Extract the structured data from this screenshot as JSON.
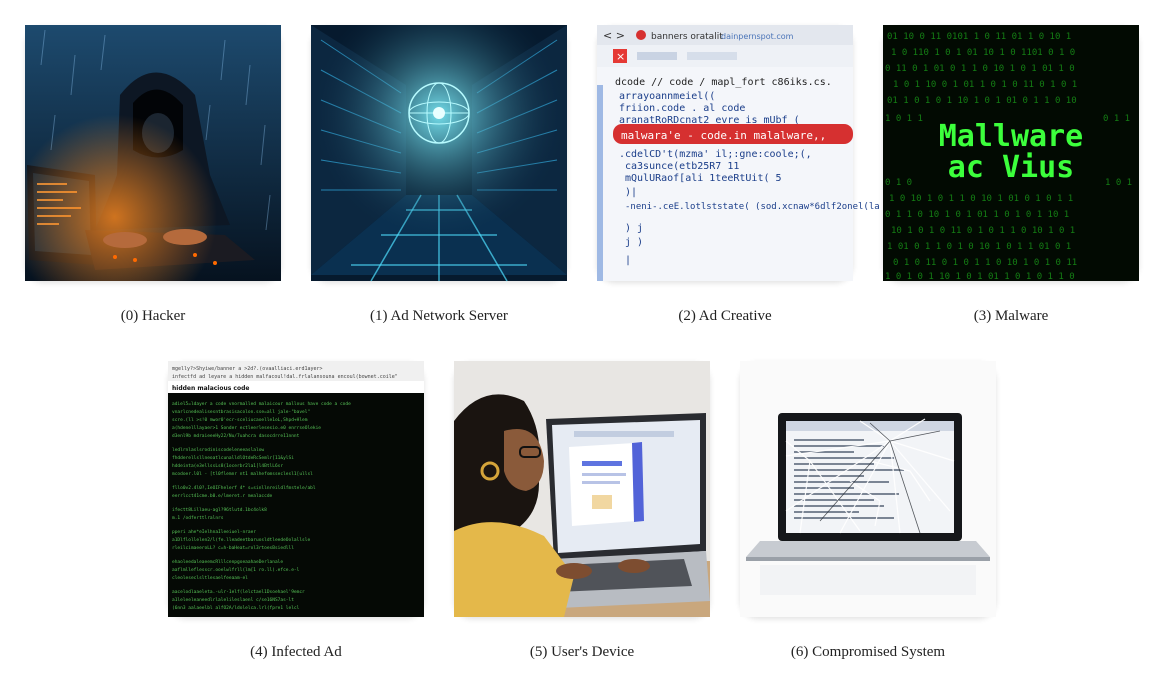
{
  "items": [
    {
      "index": "(0)",
      "label": "Hacker",
      "caption": "(0) Hacker"
    },
    {
      "index": "(1)",
      "label": "Ad Network Server",
      "caption": "(1) Ad Network Server"
    },
    {
      "index": "(2)",
      "label": "Ad Creative",
      "caption": "(2) Ad Creative"
    },
    {
      "index": "(3)",
      "label": "Malware",
      "caption": "(3) Malware"
    },
    {
      "index": "(4)",
      "label": "Infected Ad",
      "caption": "(4) Infected Ad"
    },
    {
      "index": "(5)",
      "label": "User's Device",
      "caption": "(5) User's Device"
    },
    {
      "index": "(6)",
      "label": "Compromised System",
      "caption": "(6) Compromised System"
    }
  ],
  "image_text": {
    "ad_creative_tab": "banners oratalit",
    "ad_creative_url": "dainpernspot.com",
    "ad_creative_path": "dcode // code / mapl_fort c86iks.cs.",
    "ad_creative_lines": [
      "arrayoannmeiel((",
      "friion.code .  al  code",
      "aranatRoRDcnat2  evre is mUbf (",
      "malwara'e  -  code.in malalware,,",
      ".cdelCD't(mzma' il;:gne:coole;(,",
      "ca3sunce(etb25R7 11",
      "mQulURaof[ali 1teeRtUit(  5",
      "   )|",
      "  -neni-.ceE.lotlststate( (sod.xcnaw*6dlf2onel(la",
      "  )  j",
      "  j )",
      "  |"
    ],
    "malware_text_line1": "Mallware",
    "malware_text_line2": "ac Vius",
    "infected_ad_bar": "hidden malacious code",
    "infected_ad_top": "mgelly?>Shyiwe/banner a >2d?.(ovaalliaci.erd1ayer>"
  },
  "colors": {
    "caption_text": "#222222",
    "malware_green": "#3cff3c",
    "code_highlight": "#d63030"
  }
}
